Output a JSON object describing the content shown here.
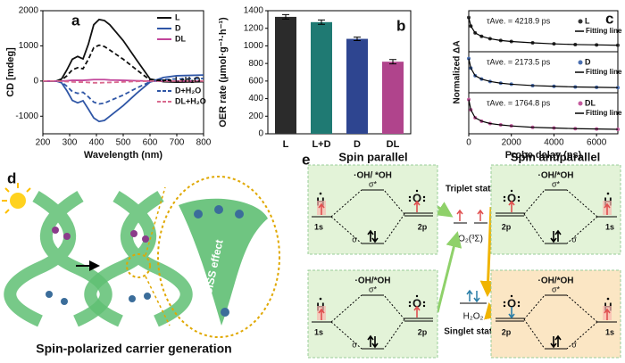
{
  "chart_data": [
    {
      "type": "line",
      "label": "a",
      "xlabel": "Wavelength (nm)",
      "ylabel": "CD [mdeg]",
      "x": [
        200,
        250,
        270,
        290,
        310,
        330,
        350,
        370,
        390,
        410,
        430,
        450,
        500,
        550,
        600,
        650,
        700,
        800
      ],
      "xlim": [
        200,
        800
      ],
      "xticks": [
        200,
        300,
        400,
        500,
        600,
        700,
        800
      ],
      "ylim": [
        -1500,
        2000
      ],
      "yticks": [
        -1000,
        0,
        1000,
        2000
      ],
      "legend": "upper right",
      "series": [
        {
          "name": "L",
          "color": "#111111",
          "dash": false,
          "values": [
            0,
            0,
            60,
            320,
            620,
            700,
            630,
            1050,
            1600,
            1750,
            1720,
            1600,
            1150,
            600,
            60,
            -20,
            -30,
            -20
          ]
        },
        {
          "name": "D",
          "color": "#2f56a6",
          "dash": false,
          "values": [
            0,
            0,
            -50,
            -280,
            -550,
            -620,
            -560,
            -800,
            -1050,
            -1150,
            -1120,
            -1000,
            -700,
            -350,
            -30,
            100,
            150,
            170
          ]
        },
        {
          "name": "DL",
          "color": "#c2459a",
          "dash": false,
          "values": [
            0,
            0,
            0,
            10,
            20,
            20,
            20,
            30,
            40,
            40,
            40,
            30,
            20,
            10,
            0,
            0,
            0,
            0
          ]
        },
        {
          "name": "L+H₂O",
          "color": "#111111",
          "dash": true,
          "values": [
            0,
            0,
            30,
            150,
            320,
            380,
            350,
            620,
            950,
            1020,
            980,
            880,
            620,
            320,
            30,
            -10,
            -10,
            0
          ]
        },
        {
          "name": "D+H₂O",
          "color": "#2f56a6",
          "dash": true,
          "values": [
            0,
            0,
            -30,
            -150,
            -300,
            -350,
            -320,
            -450,
            -600,
            -650,
            -630,
            -560,
            -400,
            -200,
            -20,
            40,
            60,
            70
          ]
        },
        {
          "name": "DL+H₂O",
          "color": "#d96a8e",
          "dash": true,
          "values": [
            0,
            0,
            -5,
            -15,
            -25,
            -30,
            -30,
            -40,
            -50,
            -50,
            -45,
            -40,
            -25,
            -10,
            0,
            0,
            0,
            0
          ]
        }
      ]
    },
    {
      "type": "bar",
      "label": "b",
      "ylabel": "OER rate (μmol·g⁻¹·h⁻¹)",
      "categories": [
        "L",
        "L+D",
        "D",
        "DL"
      ],
      "values": [
        1330,
        1270,
        1080,
        820
      ],
      "errors": [
        25,
        25,
        20,
        25
      ],
      "colors": [
        "#2b2b2b",
        "#1f7a73",
        "#2e4590",
        "#b0448c"
      ],
      "ylim": [
        0,
        1400
      ],
      "yticks": [
        0,
        200,
        400,
        600,
        800,
        1000,
        1200,
        1400
      ]
    },
    {
      "type": "decay",
      "label": "c",
      "xlabel": "Probe delay (ps)",
      "ylabel": "Normalized ΔA",
      "fit_label": "Fitting line",
      "x": [
        0,
        100,
        300,
        600,
        1000,
        1500,
        2000,
        3000,
        4000,
        5000,
        6000,
        7000
      ],
      "xlim": [
        0,
        7000
      ],
      "xticks": [
        0,
        2000,
        4000,
        6000
      ],
      "ylim": [
        0,
        1.2
      ],
      "series": [
        {
          "name": "L",
          "color": "#333333",
          "annotation": "τAve. = 4218.9 ps",
          "values": [
            1,
            0.75,
            0.55,
            0.45,
            0.38,
            0.33,
            0.3,
            0.26,
            0.23,
            0.21,
            0.2,
            0.19
          ]
        },
        {
          "name": "D",
          "color": "#4a6fb0",
          "annotation": "τAve. = 2173.5 ps",
          "values": [
            1,
            0.72,
            0.5,
            0.4,
            0.33,
            0.28,
            0.25,
            0.21,
            0.19,
            0.17,
            0.16,
            0.15
          ]
        },
        {
          "name": "DL",
          "color": "#c45a9e",
          "annotation": "τAve. = 1764.8 ps",
          "values": [
            1,
            0.7,
            0.47,
            0.37,
            0.3,
            0.26,
            0.23,
            0.19,
            0.17,
            0.15,
            0.14,
            0.13
          ]
        }
      ]
    }
  ],
  "panel_d": {
    "label": "d",
    "ciss": "CISS effect",
    "caption": "Spin-polarized carrier generation"
  },
  "panel_e": {
    "label": "e",
    "spin_parallel": "Spin parallel",
    "spin_antiparallel": "Spin antiparallel",
    "oh_top": "·OH/ *OH",
    "oh": "·OH/*OH",
    "sigma_star": "σ*",
    "sigma": "σ",
    "h": "H",
    "o": "O",
    "s1": "1s",
    "p2": "2p",
    "triplet": "Triplet state",
    "o2": "O₂(³Σ)",
    "singlet": "Singlet state",
    "h2o2": "H₂O₂"
  }
}
